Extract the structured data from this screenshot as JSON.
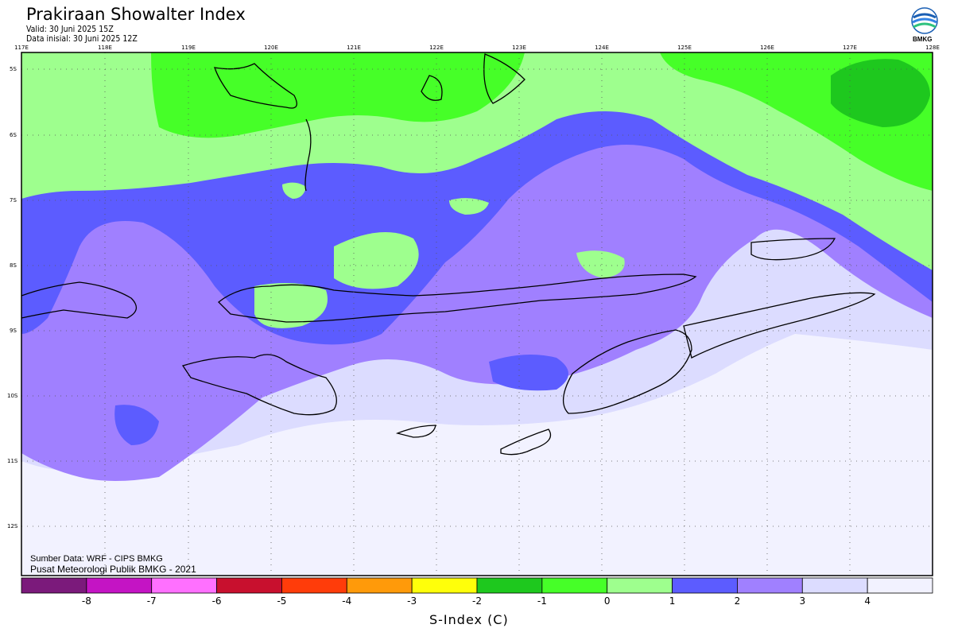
{
  "header": {
    "title": "Prakiraan Showalter Index",
    "valid": "Valid: 30 Juni 2025 15Z",
    "init": "Data inisial: 30 Juni 2025 12Z",
    "logo_text": "BMKG"
  },
  "axes": {
    "lon_labels": [
      "117E",
      "118E",
      "119E",
      "120E",
      "121E",
      "122E",
      "123E",
      "124E",
      "125E",
      "126E",
      "127E",
      "128E"
    ],
    "lat_labels": [
      "5S",
      "6S",
      "7S",
      "8S",
      "9S",
      "10S",
      "11S",
      "12S"
    ]
  },
  "footer": {
    "source": "Sumber Data: WRF - CIPS BMKG",
    "center": "Pusat Meteorologi Publik BMKG - 2021"
  },
  "colorbar": {
    "title": "S-Index (C)",
    "labels": [
      "-8",
      "-7",
      "-6",
      "-5",
      "-4",
      "-3",
      "-2",
      "-1",
      "0",
      "1",
      "2",
      "3",
      "4"
    ],
    "colors": [
      "#7b1a7b",
      "#c414c4",
      "#ff70ff",
      "#c8102e",
      "#ff3c0a",
      "#ff9a0a",
      "#ffff0a",
      "#1ec81e",
      "#46ff28",
      "#9eff8e",
      "#5c5cff",
      "#a080ff",
      "#dcdcff",
      "#f2f2ff"
    ]
  },
  "map_colors": {
    "very_stable": "#f2f2ff",
    "stable": "#dcdcff",
    "slightly_stable": "#a080ff",
    "neutral": "#5c5cff",
    "weak": "#9eff8e",
    "moderate": "#46ff28",
    "strong": "#1ec81e"
  }
}
